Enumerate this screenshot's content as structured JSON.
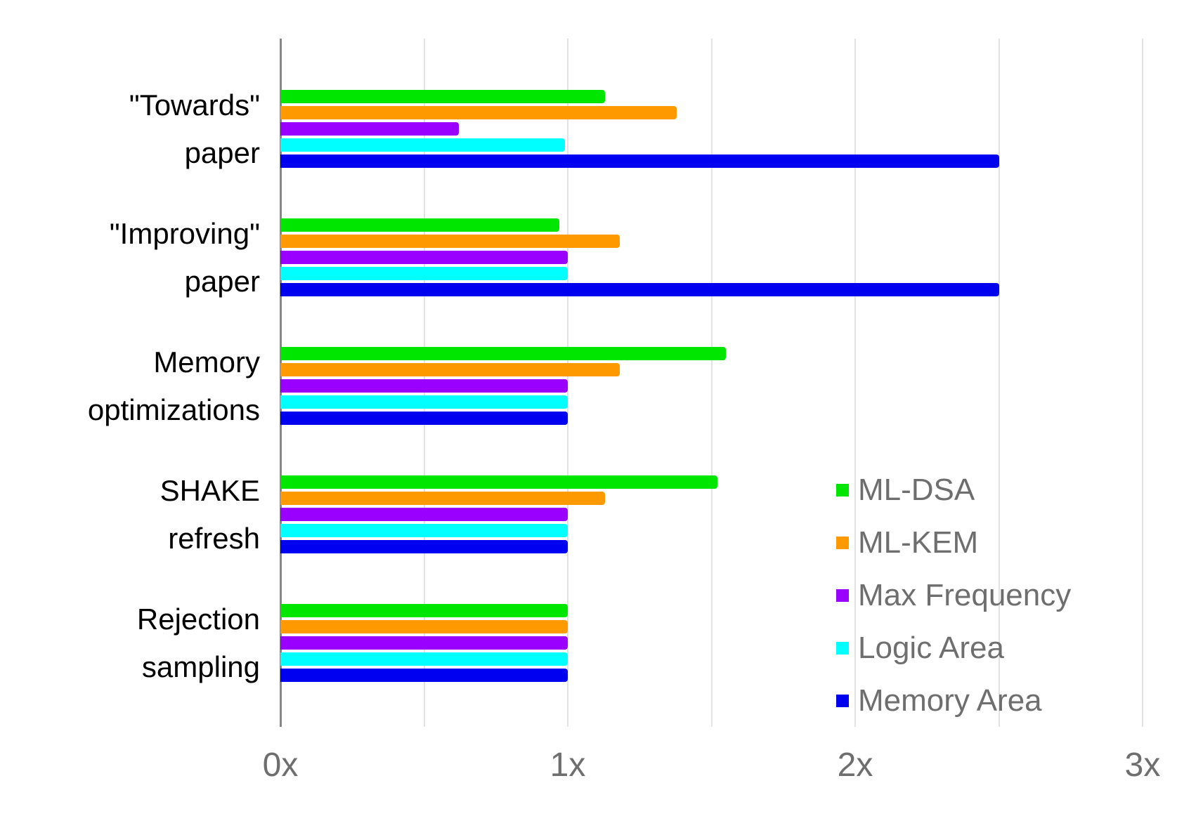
{
  "chart_data": {
    "type": "bar",
    "orientation": "horizontal",
    "title": "",
    "xlabel": "",
    "ylabel": "",
    "categories": [
      "\"Towards\"\npaper",
      "\"Improving\"\npaper",
      "Memory\noptimizations",
      "SHAKE\nrefresh",
      "Rejection\nsampling"
    ],
    "series": [
      {
        "name": "ML-DSA",
        "color": "#00e600",
        "values": [
          1.13,
          0.97,
          1.55,
          1.52,
          1.0
        ]
      },
      {
        "name": "ML-KEM",
        "color": "#ff9900",
        "values": [
          1.38,
          1.18,
          1.18,
          1.13,
          1.0
        ]
      },
      {
        "name": "Max Frequency",
        "color": "#9900ff",
        "values": [
          0.62,
          1.0,
          1.0,
          1.0,
          1.0
        ]
      },
      {
        "name": "Logic Area",
        "color": "#00ffff",
        "values": [
          0.99,
          1.0,
          1.0,
          1.0,
          1.0
        ]
      },
      {
        "name": "Memory Area",
        "color": "#0000f0",
        "values": [
          2.5,
          2.5,
          1.0,
          1.0,
          1.0
        ]
      }
    ],
    "x_axis": {
      "min": 0,
      "max": 3,
      "major_step": 1,
      "minor_step": 0.5,
      "tick_labels": [
        "0x",
        "1x",
        "2x",
        "3x"
      ]
    },
    "grid": true,
    "legend_position": "middle-right",
    "colors": {
      "background": "#ffffff",
      "gridline": "#e2e2e2",
      "axis_line": "#878787",
      "tick_text": "#6e6e6e",
      "legend_text": "#6e6e6e",
      "category_text": "#000000"
    }
  }
}
